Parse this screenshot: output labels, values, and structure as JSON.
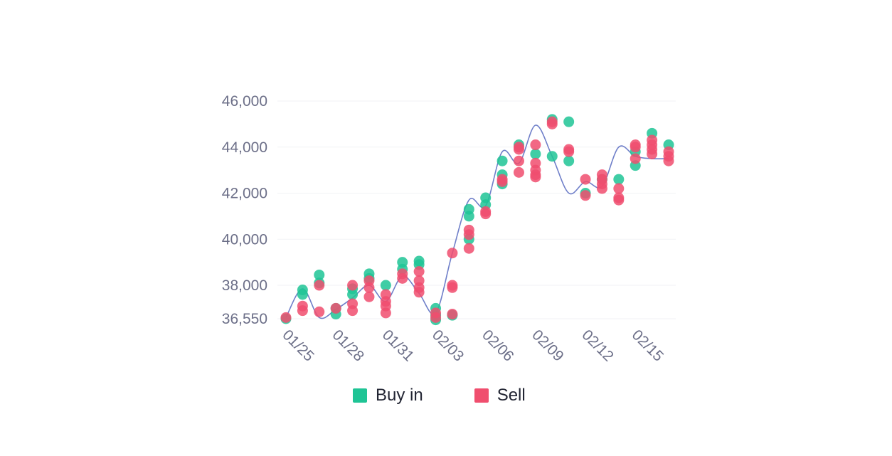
{
  "chart_data": {
    "type": "scatter",
    "title": "",
    "xlabel": "",
    "ylabel": "",
    "x_ticks": [
      "01/25",
      "01/28",
      "01/31",
      "02/03",
      "02/06",
      "02/09",
      "02/12",
      "02/15"
    ],
    "y_ticks": [
      "36,550",
      "38,000",
      "40,000",
      "42,000",
      "44,000",
      "46,000"
    ],
    "y_tick_values": [
      36550,
      38000,
      40000,
      42000,
      44000,
      46000
    ],
    "ylim": [
      36550,
      46000
    ],
    "xlim": [
      "01/25",
      "02/17"
    ],
    "grid": "horizontal",
    "legend_position": "bottom",
    "price_line": {
      "x": [
        "01/25",
        "01/26",
        "01/27",
        "01/28",
        "01/29",
        "01/30",
        "01/31",
        "02/01",
        "02/02",
        "02/03",
        "02/04",
        "02/05",
        "02/06",
        "02/07",
        "02/08",
        "02/09",
        "02/10",
        "02/11",
        "02/12",
        "02/13",
        "02/14",
        "02/15",
        "02/16",
        "02/17"
      ],
      "y": [
        36600,
        37850,
        36600,
        36950,
        37450,
        38000,
        37300,
        38400,
        37650,
        36800,
        39400,
        41700,
        41450,
        43800,
        43300,
        44950,
        43600,
        42000,
        42500,
        42300,
        44000,
        43600,
        43500,
        43500
      ]
    },
    "series": [
      {
        "name": "Buy in",
        "color": "#1fc495",
        "points": [
          {
            "x": "01/25",
            "y": 36550
          },
          {
            "x": "01/26",
            "y": 37800
          },
          {
            "x": "01/26",
            "y": 37600
          },
          {
            "x": "01/27",
            "y": 38450
          },
          {
            "x": "01/27",
            "y": 38100
          },
          {
            "x": "01/28",
            "y": 36750
          },
          {
            "x": "01/28",
            "y": 37000
          },
          {
            "x": "01/29",
            "y": 37600
          },
          {
            "x": "01/29",
            "y": 37850
          },
          {
            "x": "01/30",
            "y": 38500
          },
          {
            "x": "01/30",
            "y": 38300
          },
          {
            "x": "01/31",
            "y": 38000
          },
          {
            "x": "02/01",
            "y": 39000
          },
          {
            "x": "02/01",
            "y": 38700
          },
          {
            "x": "02/02",
            "y": 39050
          },
          {
            "x": "02/02",
            "y": 38900
          },
          {
            "x": "02/03",
            "y": 37000
          },
          {
            "x": "02/03",
            "y": 36500
          },
          {
            "x": "02/03",
            "y": 36700
          },
          {
            "x": "02/04",
            "y": 36700
          },
          {
            "x": "02/05",
            "y": 41300
          },
          {
            "x": "02/05",
            "y": 41000
          },
          {
            "x": "02/05",
            "y": 40000
          },
          {
            "x": "02/06",
            "y": 41800
          },
          {
            "x": "02/06",
            "y": 41500
          },
          {
            "x": "02/07",
            "y": 43400
          },
          {
            "x": "02/07",
            "y": 42800
          },
          {
            "x": "02/07",
            "y": 42400
          },
          {
            "x": "02/08",
            "y": 44100
          },
          {
            "x": "02/09",
            "y": 43700
          },
          {
            "x": "02/10",
            "y": 45200
          },
          {
            "x": "02/10",
            "y": 43600
          },
          {
            "x": "02/11",
            "y": 45100
          },
          {
            "x": "02/11",
            "y": 43400
          },
          {
            "x": "02/12",
            "y": 42000
          },
          {
            "x": "02/13",
            "y": 42600
          },
          {
            "x": "02/14",
            "y": 42600
          },
          {
            "x": "02/15",
            "y": 43800
          },
          {
            "x": "02/15",
            "y": 43200
          },
          {
            "x": "02/16",
            "y": 44600
          },
          {
            "x": "02/17",
            "y": 44100
          }
        ]
      },
      {
        "name": "Sell",
        "color": "#f04e6e",
        "points": [
          {
            "x": "01/25",
            "y": 36600
          },
          {
            "x": "01/26",
            "y": 37100
          },
          {
            "x": "01/26",
            "y": 36900
          },
          {
            "x": "01/27",
            "y": 36850
          },
          {
            "x": "01/27",
            "y": 38000
          },
          {
            "x": "01/28",
            "y": 37000
          },
          {
            "x": "01/29",
            "y": 38000
          },
          {
            "x": "01/29",
            "y": 37200
          },
          {
            "x": "01/29",
            "y": 36900
          },
          {
            "x": "01/30",
            "y": 38200
          },
          {
            "x": "01/30",
            "y": 37900
          },
          {
            "x": "01/30",
            "y": 37500
          },
          {
            "x": "01/31",
            "y": 37600
          },
          {
            "x": "01/31",
            "y": 37300
          },
          {
            "x": "01/31",
            "y": 37100
          },
          {
            "x": "01/31",
            "y": 36800
          },
          {
            "x": "02/01",
            "y": 38500
          },
          {
            "x": "02/01",
            "y": 38300
          },
          {
            "x": "02/02",
            "y": 38600
          },
          {
            "x": "02/02",
            "y": 38200
          },
          {
            "x": "02/02",
            "y": 37900
          },
          {
            "x": "02/02",
            "y": 37700
          },
          {
            "x": "02/03",
            "y": 36800
          },
          {
            "x": "02/03",
            "y": 36600
          },
          {
            "x": "02/04",
            "y": 39400
          },
          {
            "x": "02/04",
            "y": 38000
          },
          {
            "x": "02/04",
            "y": 37900
          },
          {
            "x": "02/04",
            "y": 36750
          },
          {
            "x": "02/05",
            "y": 40400
          },
          {
            "x": "02/05",
            "y": 40200
          },
          {
            "x": "02/05",
            "y": 39600
          },
          {
            "x": "02/06",
            "y": 41200
          },
          {
            "x": "02/06",
            "y": 41100
          },
          {
            "x": "02/07",
            "y": 42600
          },
          {
            "x": "02/07",
            "y": 42500
          },
          {
            "x": "02/08",
            "y": 44000
          },
          {
            "x": "02/08",
            "y": 43900
          },
          {
            "x": "02/08",
            "y": 43400
          },
          {
            "x": "02/08",
            "y": 42900
          },
          {
            "x": "02/09",
            "y": 44100
          },
          {
            "x": "02/09",
            "y": 43300
          },
          {
            "x": "02/09",
            "y": 43000
          },
          {
            "x": "02/09",
            "y": 42800
          },
          {
            "x": "02/09",
            "y": 42700
          },
          {
            "x": "02/10",
            "y": 45100
          },
          {
            "x": "02/10",
            "y": 45000
          },
          {
            "x": "02/11",
            "y": 43900
          },
          {
            "x": "02/11",
            "y": 43800
          },
          {
            "x": "02/12",
            "y": 42600
          },
          {
            "x": "02/12",
            "y": 41900
          },
          {
            "x": "02/13",
            "y": 42800
          },
          {
            "x": "02/13",
            "y": 42600
          },
          {
            "x": "02/13",
            "y": 42400
          },
          {
            "x": "02/13",
            "y": 42200
          },
          {
            "x": "02/14",
            "y": 42200
          },
          {
            "x": "02/14",
            "y": 41800
          },
          {
            "x": "02/14",
            "y": 41700
          },
          {
            "x": "02/15",
            "y": 44100
          },
          {
            "x": "02/15",
            "y": 44000
          },
          {
            "x": "02/15",
            "y": 43500
          },
          {
            "x": "02/16",
            "y": 44300
          },
          {
            "x": "02/16",
            "y": 44100
          },
          {
            "x": "02/16",
            "y": 43900
          },
          {
            "x": "02/16",
            "y": 43700
          },
          {
            "x": "02/17",
            "y": 43800
          },
          {
            "x": "02/17",
            "y": 43600
          },
          {
            "x": "02/17",
            "y": 43400
          }
        ]
      }
    ]
  },
  "legend": {
    "buy_label": "Buy in",
    "sell_label": "Sell"
  },
  "colors": {
    "buy": "#1fc495",
    "sell": "#f04e6e",
    "line": "#6f7fc9",
    "axis_text": "#6c6f88",
    "grid": "#f1f2f5"
  }
}
